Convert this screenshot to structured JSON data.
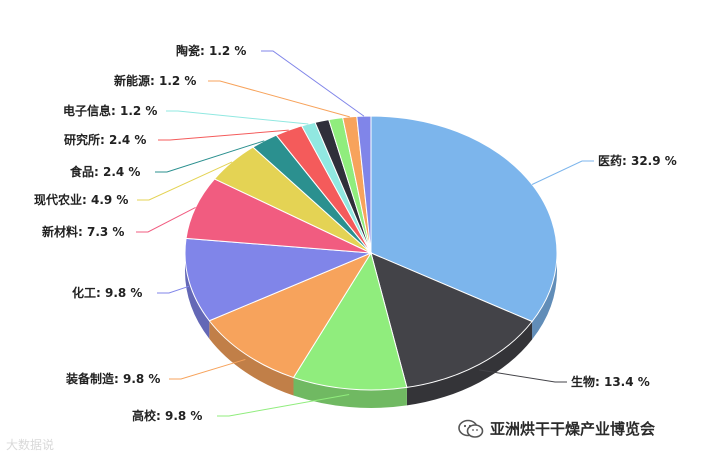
{
  "chart_data": {
    "type": "pie",
    "style": "3d",
    "slices": [
      {
        "label": "医药",
        "value": 32.9,
        "display": "医药: 32.9 %",
        "color": "#7cb5ec"
      },
      {
        "label": "生物",
        "value": 13.4,
        "display": "生物: 13.4 %",
        "color": "#434348"
      },
      {
        "label": "高校",
        "value": 9.8,
        "display": "高校: 9.8 %",
        "color": "#90ed7d"
      },
      {
        "label": "装备制造",
        "value": 9.8,
        "display": "装备制造: 9.8 %",
        "color": "#f7a35c"
      },
      {
        "label": "化工",
        "value": 9.8,
        "display": "化工: 9.8 %",
        "color": "#8085e9"
      },
      {
        "label": "新材料",
        "value": 7.3,
        "display": "新材料: 7.3 %",
        "color": "#f15c80"
      },
      {
        "label": "现代农业",
        "value": 4.9,
        "display": "现代农业: 4.9 %",
        "color": "#e4d354"
      },
      {
        "label": "食品",
        "value": 2.4,
        "display": "食品: 2.4 %",
        "color": "#2b908f"
      },
      {
        "label": "研究所",
        "value": 2.4,
        "display": "研究所: 2.4 %",
        "color": "#f45b5b"
      },
      {
        "label": "电子信息",
        "value": 1.2,
        "display": "电子信息: 1.2 %",
        "color": "#91e8e1"
      },
      {
        "label": "",
        "value": 1.2,
        "display": "",
        "color": "#2f2f3a"
      },
      {
        "label": "",
        "value": 1.2,
        "display": "",
        "color": "#90ed7d"
      },
      {
        "label": "新能源",
        "value": 1.2,
        "display": "新能源: 1.2 %",
        "color": "#f7a35c"
      },
      {
        "label": "陶瓷",
        "value": 1.2,
        "display": "陶瓷: 1.2 %",
        "color": "#8085e9"
      }
    ]
  },
  "watermark": {
    "left_text": "大数据说",
    "right_text": "亚洲烘干干燥产业博览会",
    "icon": "wechat-icon"
  }
}
